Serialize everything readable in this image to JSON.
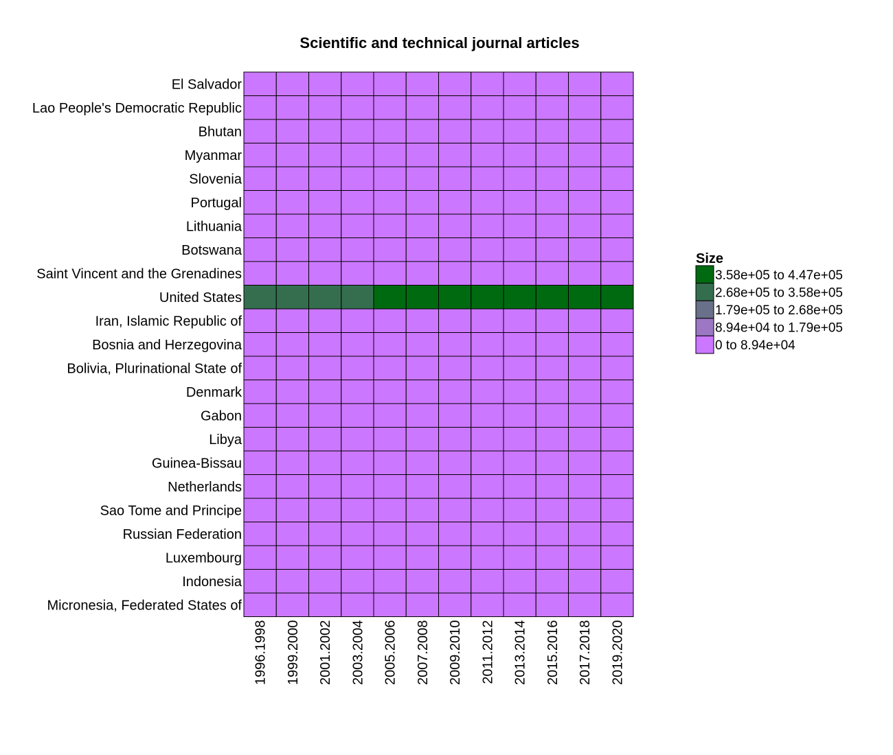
{
  "chart_data": {
    "type": "heatmap",
    "title": "Scientific and technical journal articles",
    "x_categories": [
      "1996.1998",
      "1999.2000",
      "2001.2002",
      "2003.2004",
      "2005.2006",
      "2007.2008",
      "2009.2010",
      "2011.2012",
      "2013.2014",
      "2015.2016",
      "2017.2018",
      "2019.2020"
    ],
    "y_categories": [
      "El Salvador",
      "Lao People's Democratic Republic",
      "Bhutan",
      "Myanmar",
      "Slovenia",
      "Portugal",
      "Lithuania",
      "Botswana",
      "Saint Vincent and the Grenadines",
      "United States",
      "Iran, Islamic Republic of",
      "Bosnia and Herzegovina",
      "Bolivia, Plurinational State of",
      "Denmark",
      "Gabon",
      "Libya",
      "Guinea-Bissau",
      "Netherlands",
      "Sao Tome and Principe",
      "Russian Federation",
      "Luxembourg",
      "Indonesia",
      "Micronesia, Federated States of"
    ],
    "bin_index_matrix": [
      [
        0,
        0,
        0,
        0,
        0,
        0,
        0,
        0,
        0,
        0,
        0,
        0
      ],
      [
        0,
        0,
        0,
        0,
        0,
        0,
        0,
        0,
        0,
        0,
        0,
        0
      ],
      [
        0,
        0,
        0,
        0,
        0,
        0,
        0,
        0,
        0,
        0,
        0,
        0
      ],
      [
        0,
        0,
        0,
        0,
        0,
        0,
        0,
        0,
        0,
        0,
        0,
        0
      ],
      [
        0,
        0,
        0,
        0,
        0,
        0,
        0,
        0,
        0,
        0,
        0,
        0
      ],
      [
        0,
        0,
        0,
        0,
        0,
        0,
        0,
        0,
        0,
        0,
        0,
        0
      ],
      [
        0,
        0,
        0,
        0,
        0,
        0,
        0,
        0,
        0,
        0,
        0,
        0
      ],
      [
        0,
        0,
        0,
        0,
        0,
        0,
        0,
        0,
        0,
        0,
        0,
        0
      ],
      [
        0,
        0,
        0,
        0,
        0,
        0,
        0,
        0,
        0,
        0,
        0,
        0
      ],
      [
        3,
        3,
        3,
        3,
        4,
        4,
        4,
        4,
        4,
        4,
        4,
        4
      ],
      [
        0,
        0,
        0,
        0,
        0,
        0,
        0,
        0,
        0,
        0,
        0,
        0
      ],
      [
        0,
        0,
        0,
        0,
        0,
        0,
        0,
        0,
        0,
        0,
        0,
        0
      ],
      [
        0,
        0,
        0,
        0,
        0,
        0,
        0,
        0,
        0,
        0,
        0,
        0
      ],
      [
        0,
        0,
        0,
        0,
        0,
        0,
        0,
        0,
        0,
        0,
        0,
        0
      ],
      [
        0,
        0,
        0,
        0,
        0,
        0,
        0,
        0,
        0,
        0,
        0,
        0
      ],
      [
        0,
        0,
        0,
        0,
        0,
        0,
        0,
        0,
        0,
        0,
        0,
        0
      ],
      [
        0,
        0,
        0,
        0,
        0,
        0,
        0,
        0,
        0,
        0,
        0,
        0
      ],
      [
        0,
        0,
        0,
        0,
        0,
        0,
        0,
        0,
        0,
        0,
        0,
        0
      ],
      [
        0,
        0,
        0,
        0,
        0,
        0,
        0,
        0,
        0,
        0,
        0,
        0
      ],
      [
        0,
        0,
        0,
        0,
        0,
        0,
        0,
        0,
        0,
        0,
        0,
        0
      ],
      [
        0,
        0,
        0,
        0,
        0,
        0,
        0,
        0,
        0,
        0,
        0,
        0
      ],
      [
        0,
        0,
        0,
        0,
        0,
        0,
        0,
        0,
        0,
        0,
        0,
        0
      ],
      [
        0,
        0,
        0,
        0,
        0,
        0,
        0,
        0,
        0,
        0,
        0,
        0
      ]
    ],
    "legend": {
      "title": "Size",
      "placement": "right",
      "bins": [
        {
          "label": "0 to 8.94e+04",
          "color": "#cc77ff"
        },
        {
          "label": "8.94e+04 to 1.79e+05",
          "color": "#9b77c4"
        },
        {
          "label": "1.79e+05 to 2.68e+05",
          "color": "#697089"
        },
        {
          "label": "2.68e+05 to 3.58e+05",
          "color": "#356e4e"
        },
        {
          "label": "3.58e+05 to 4.47e+05",
          "color": "#006a11"
        }
      ]
    }
  }
}
